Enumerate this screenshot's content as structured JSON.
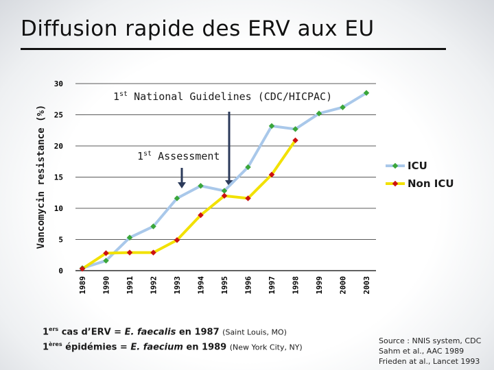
{
  "title": "Diffusion rapide des ERV aux EU",
  "chart_data": {
    "type": "line",
    "categories": [
      "1989",
      "1990",
      "1991",
      "1992",
      "1993",
      "1994",
      "1995",
      "1996",
      "1997",
      "1998",
      "1999",
      "2000",
      "2003"
    ],
    "series": [
      {
        "name": "ICU",
        "color": "#a9c8ea",
        "marker_color": "#3aa63a",
        "values": [
          0.4,
          1.6,
          5.3,
          7.1,
          11.6,
          13.6,
          12.8,
          16.6,
          23.2,
          22.7,
          25.2,
          26.2,
          28.5
        ]
      },
      {
        "name": "Non ICU",
        "color": "#f2e100",
        "marker_color": "#cc1111",
        "values": [
          0.3,
          2.8,
          2.9,
          2.9,
          4.9,
          8.9,
          12.0,
          11.6,
          15.4,
          20.9,
          null,
          null,
          null
        ]
      }
    ],
    "ylabel": "Vancomycin resistance (%)",
    "xlabel": "",
    "ylim": [
      0,
      30
    ],
    "yticks": [
      0,
      5,
      10,
      15,
      20,
      25,
      30
    ],
    "grid": true,
    "legend_position": "right"
  },
  "annotations": {
    "guidelines_ordinal": "1",
    "guidelines_sup": "st",
    "guidelines_text": " National Guidelines (CDC/HICPAC)",
    "assessment_ordinal": "1",
    "assessment_sup": "st",
    "assessment_text": " Assessment"
  },
  "note": {
    "line1_prefix": "1",
    "line1_sup": "ers",
    "line1_a": " cas d’ERV = ",
    "line1_species": "E. faecalis",
    "line1_b": " en 1987 ",
    "line1_place": "(Saint Louis, MO)",
    "line2_prefix": "1",
    "line2_sup": "ères",
    "line2_a": " épidémies = ",
    "line2_species": "E. faecium",
    "line2_b": " en 1989 ",
    "line2_place": "(New York City, NY)"
  },
  "source": {
    "line1": "Source : NNIS system, CDC",
    "line2": "Sahm et al., AAC 1989",
    "line3": "Frieden at al., Lancet 1993"
  },
  "colors": {
    "icu_line": "#a9c8ea",
    "icu_marker": "#3aa63a",
    "non_icu_line": "#f2e100",
    "non_icu_marker": "#cc1111",
    "arrow": "#2b3a5a"
  }
}
